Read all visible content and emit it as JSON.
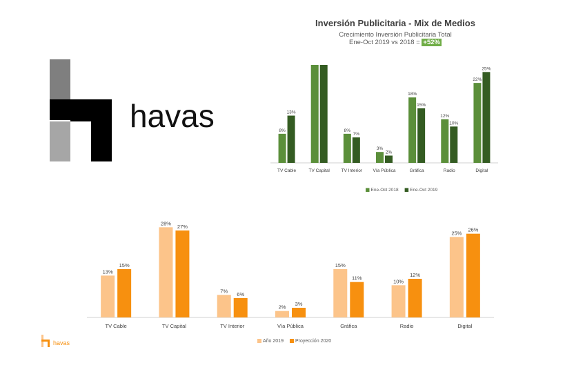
{
  "logo": {
    "wordmark": "havas",
    "footer_wordmark": "havas"
  },
  "header": {
    "title": "Inversión Publicitaria - Mix de Medios",
    "subtitle_line1": "Crecimiento Inversión Publicitaria Total",
    "subtitle_line2_prefix": "Ene-Oct 2019 vs 2018 = ",
    "growth_badge": "+52%"
  },
  "chart_data": [
    {
      "type": "bar",
      "title": "",
      "categories": [
        "TV Cable",
        "TV Capital",
        "TV Interior",
        "Vía Pública",
        "Gráfica",
        "Radio",
        "Digital"
      ],
      "series": [
        {
          "name": "Ene-Oct 2018",
          "values": [
            8,
            29,
            8,
            3,
            18,
            12,
            22
          ],
          "color": "#5b8f3a"
        },
        {
          "name": "Ene-Oct 2019",
          "values": [
            13,
            28,
            7,
            2,
            15,
            10,
            25
          ],
          "color": "#345c22"
        }
      ],
      "ylim": [
        0,
        30
      ],
      "value_suffix": "%",
      "grid": false,
      "legend_position": "bottom"
    },
    {
      "type": "bar",
      "title": "",
      "categories": [
        "TV Cable",
        "TV Capital",
        "TV Interior",
        "Vía Pública",
        "Gráfica",
        "Radio",
        "Digital"
      ],
      "series": [
        {
          "name": "Año 2019",
          "values": [
            13,
            28,
            7,
            2,
            15,
            10,
            25
          ],
          "color": "#fcc48a"
        },
        {
          "name": "Proyección 2020",
          "values": [
            15,
            27,
            6,
            3,
            11,
            12,
            26
          ],
          "color": "#f7900f"
        }
      ],
      "ylim": [
        0,
        30
      ],
      "value_suffix": "%",
      "grid": false,
      "legend_position": "bottom"
    }
  ]
}
